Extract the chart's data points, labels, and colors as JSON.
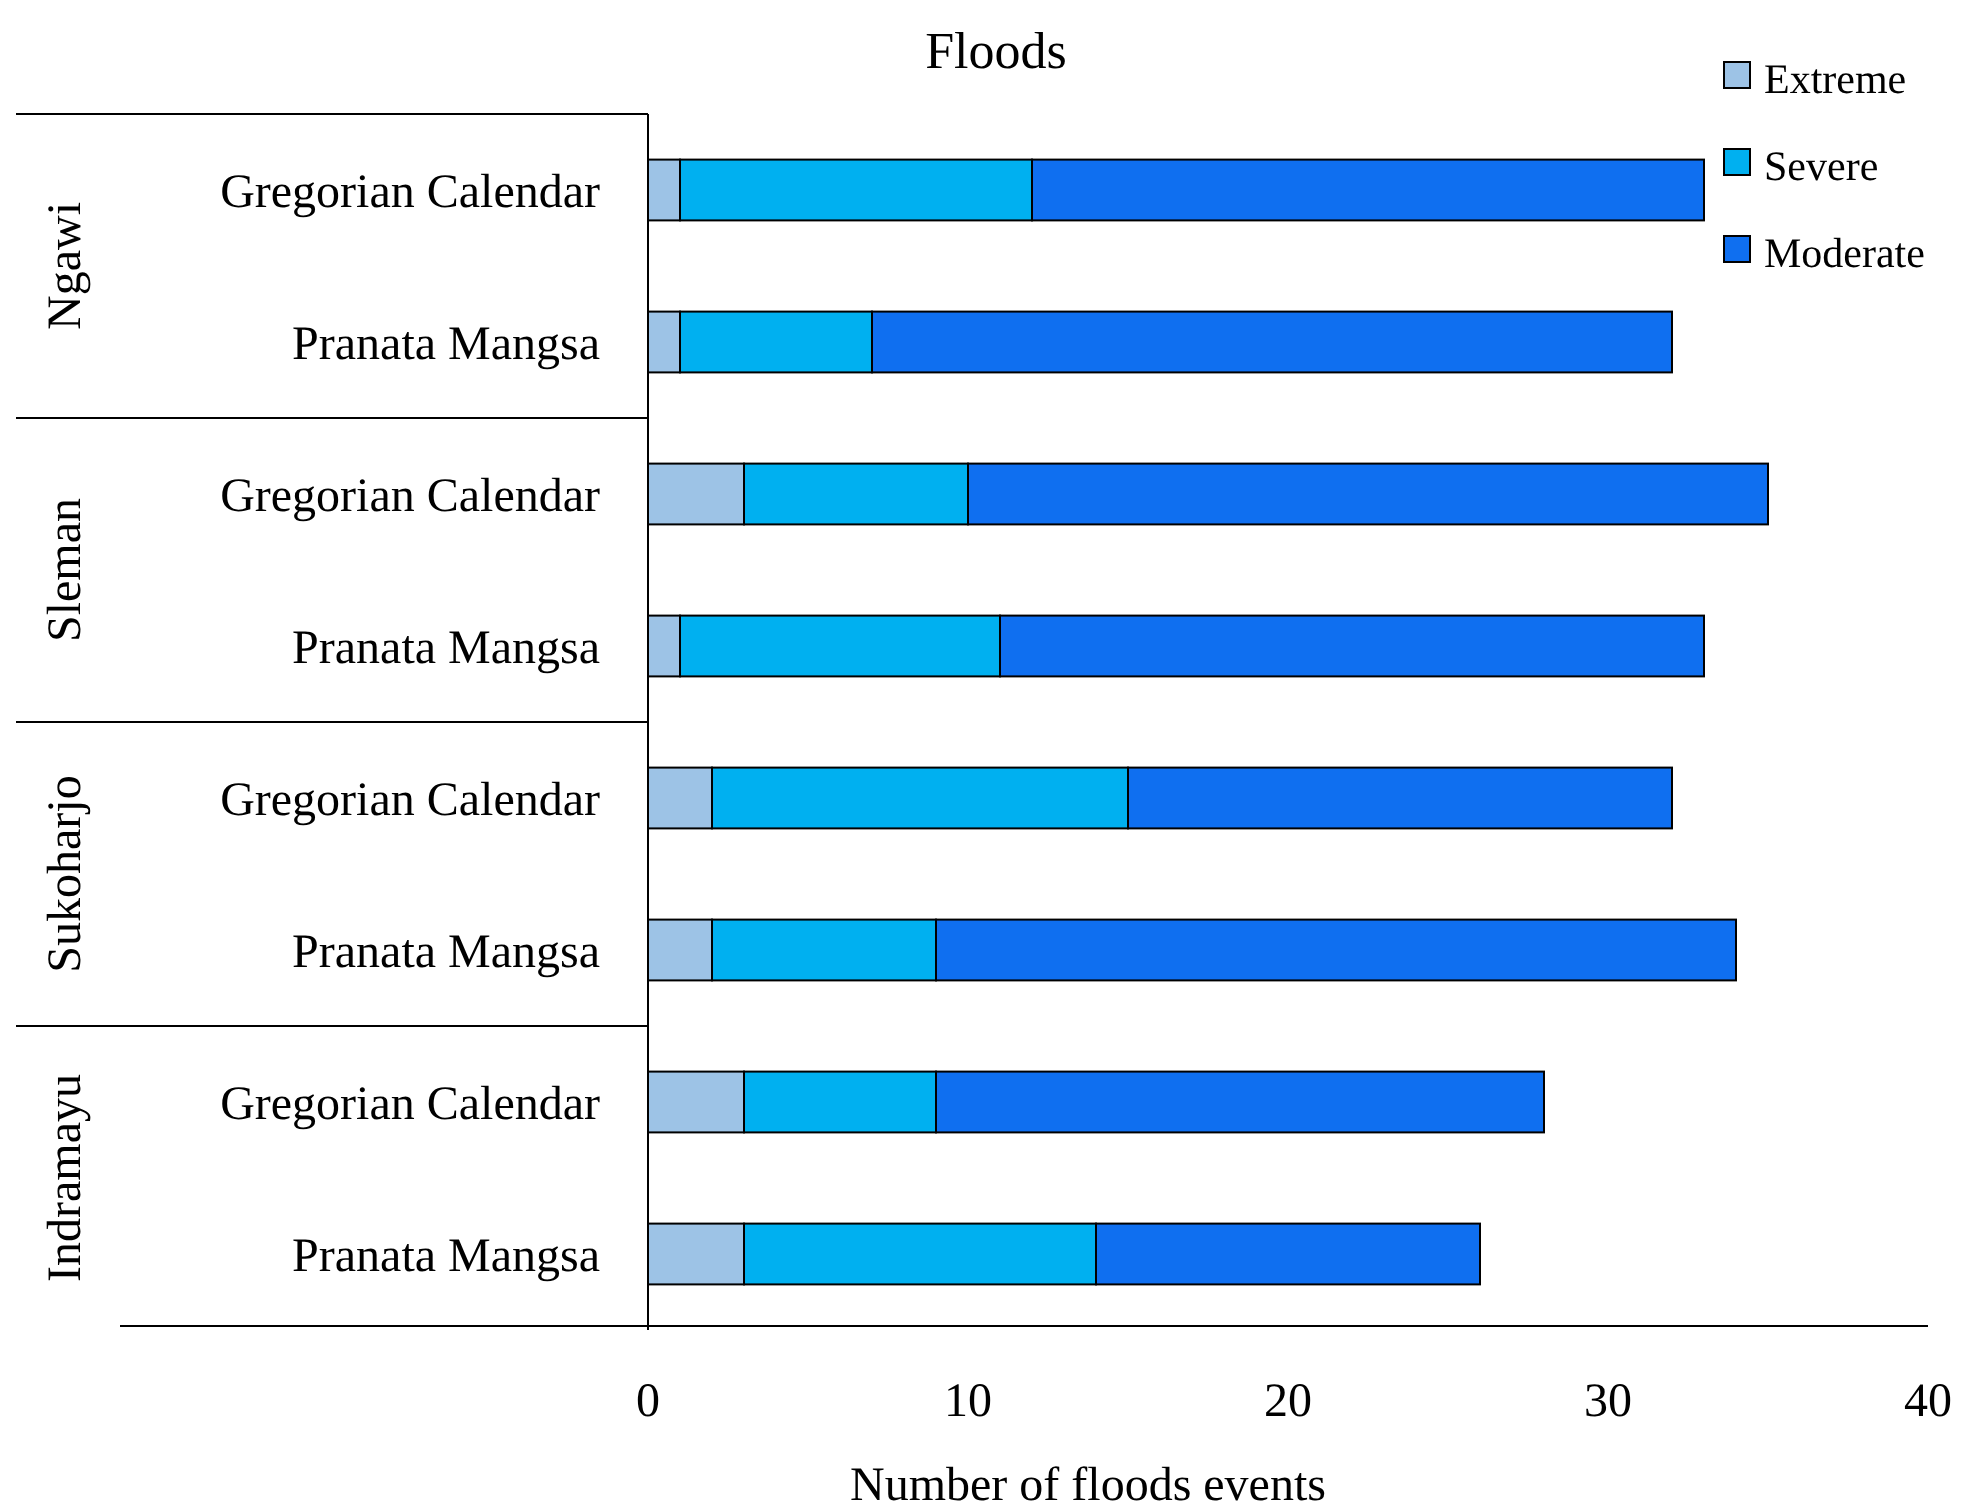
{
  "chart_data": {
    "type": "bar",
    "orientation": "horizontal",
    "stacked": true,
    "title": "Floods",
    "xlabel": "Number  of floods events",
    "categories": [
      "Gregorian Calendar",
      "Pranata Mangsa",
      "Gregorian Calendar",
      "Pranata Mangsa",
      "Gregorian Calendar",
      "Pranata Mangsa",
      "Gregorian Calendar",
      "Pranata Mangsa"
    ],
    "annotations": [
      "Ngawi",
      "Sleman",
      "Sukoharjo",
      "Indramayu"
    ],
    "series": [
      {
        "name": "Extreme",
        "color": "#9dc3e6",
        "values": [
          1,
          1,
          3,
          1,
          2,
          2,
          3,
          3
        ]
      },
      {
        "name": "Severe",
        "color": "#00b0f0",
        "values": [
          11,
          6,
          7,
          10,
          13,
          7,
          6,
          11
        ]
      },
      {
        "name": "Moderate",
        "color": "#0f6ff0",
        "values": [
          21,
          25,
          25,
          22,
          17,
          25,
          19,
          12
        ]
      }
    ],
    "xlim": [
      0,
      40
    ],
    "xticks": [
      0,
      10,
      20,
      30,
      40
    ],
    "grid": false,
    "legend": "top right"
  }
}
